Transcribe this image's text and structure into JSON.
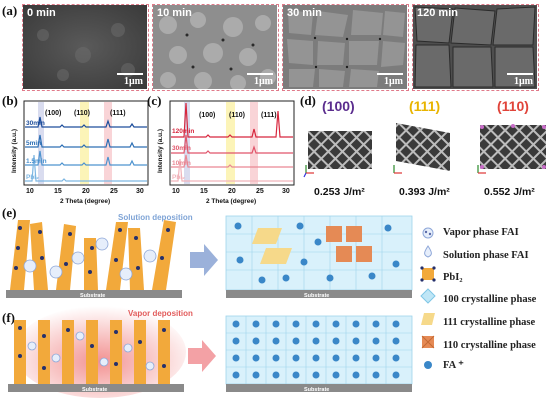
{
  "panels": {
    "a": "(a)",
    "b": "(b)",
    "c": "(c)",
    "d": "(d)",
    "e": "(e)",
    "f": "(f)"
  },
  "sem_images": [
    {
      "time": "0 min",
      "scale": "1μm"
    },
    {
      "time": "10 min",
      "scale": "1μm"
    },
    {
      "time": "30 min",
      "scale": "1μm"
    },
    {
      "time": "120 min",
      "scale": "1μm"
    }
  ],
  "xrd_b": {
    "ylabel": "Intensity (a.u.)",
    "xlabel": "2 Theta (degree)",
    "xticks": [
      "10",
      "15",
      "20",
      "25",
      "30"
    ],
    "peak_labels": [
      "(100)",
      "(110)",
      "(111)"
    ],
    "curves": [
      "30min",
      "5min",
      "1.5min",
      "PbI₂"
    ],
    "colors": [
      "#1e4e9c",
      "#2d6fb5",
      "#4d93cf",
      "#7db6e2"
    ]
  },
  "xrd_c": {
    "ylabel": "Intensity (a.u.)",
    "xlabel": "2 Theta (degree)",
    "xticks": [
      "10",
      "15",
      "20",
      "25",
      "30"
    ],
    "peak_labels": [
      "(100)",
      "(110)",
      "(111)"
    ],
    "curves": [
      "120min",
      "30min",
      "10min",
      "PbI₂"
    ],
    "colors": [
      "#d7263d",
      "#e0556a",
      "#e98793",
      "#f1b3ba"
    ]
  },
  "facets": [
    {
      "label": "(100)",
      "color": "#5b2d8e",
      "energy": "0.253 J/m²"
    },
    {
      "label": "(111)",
      "color": "#e8b400",
      "energy": "0.393 J/m²"
    },
    {
      "label": "(110)",
      "color": "#e0443a",
      "energy": "0.552 J/m²"
    }
  ],
  "schematic": {
    "solution_label": "Solution deposition",
    "vapor_label": "Vapor deposition",
    "substrate": "Substrate"
  },
  "legend": [
    {
      "icon": "vapor-fai-icon",
      "text": "Vapor phase FAI"
    },
    {
      "icon": "solution-fai-icon",
      "text": "Solution phase FAI"
    },
    {
      "icon": "pbi2-icon",
      "text": "PbI₂"
    },
    {
      "icon": "phase-100-icon",
      "text": "100 crystalline phase"
    },
    {
      "icon": "phase-111-icon",
      "text": "111 crystalline phase"
    },
    {
      "icon": "phase-110-icon",
      "text": "110 crystalline phase"
    },
    {
      "icon": "fa-ion-icon",
      "text": "FA ⁺"
    }
  ],
  "colors": {
    "sem_border": "#e07a8a",
    "pbi2_orange": "#f2a93b",
    "pbi2_navy": "#26306b",
    "crystal_blue": "#bfe6f6",
    "fa_blue": "#3a87c8",
    "phase111_yellow": "#f6d98a",
    "phase110_orange": "#e58a55",
    "arrow_blue": "#9bb1da",
    "arrow_pink": "#f3a1a5",
    "vapor_red": "#f07f7f"
  }
}
